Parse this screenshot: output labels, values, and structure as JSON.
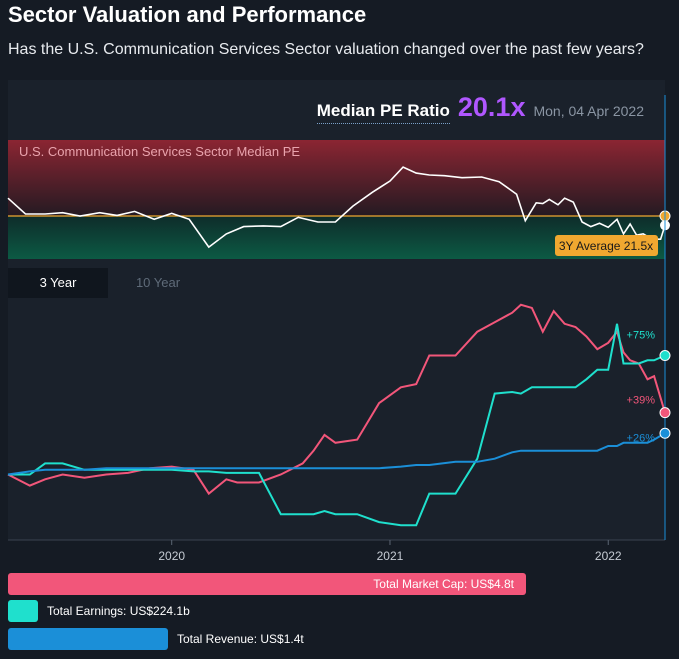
{
  "header": {
    "title": "Sector Valuation and Performance",
    "subtitle": "Has the U.S. Communication Services Sector valuation changed over the past few years?"
  },
  "pe": {
    "label": "Median PE Ratio",
    "value": "20.1x",
    "date": "Mon, 04 Apr 2022",
    "band_label": "U.S. Communication Services Sector Median PE",
    "average_label": "3Y Average 21.5x"
  },
  "tabs": [
    {
      "label": "3 Year",
      "active": true
    },
    {
      "label": "10 Year",
      "active": false
    }
  ],
  "colors": {
    "market_cap": "#f2567a",
    "earnings": "#1fe0cd",
    "revenue": "#1b8fd8",
    "pe_value": "#b057ff",
    "average": "#f0a830"
  },
  "chart_data": [
    {
      "type": "line",
      "title": "U.S. Communication Services Sector Median PE",
      "x": [
        2019.25,
        2019.33,
        2019.42,
        2019.5,
        2019.58,
        2019.67,
        2019.75,
        2019.83,
        2019.92,
        2020.0,
        2020.08,
        2020.17,
        2020.25,
        2020.33,
        2020.42,
        2020.5,
        2020.58,
        2020.67,
        2020.75,
        2020.83,
        2020.92,
        2021.0,
        2021.06,
        2021.12,
        2021.18,
        2021.25,
        2021.33,
        2021.42,
        2021.5,
        2021.58,
        2021.62,
        2021.67,
        2021.7,
        2021.73,
        2021.77,
        2021.8,
        2021.84,
        2021.88,
        2021.92,
        2021.96,
        2022.0,
        2022.04,
        2022.07,
        2022.1,
        2022.13,
        2022.16,
        2022.2,
        2022.24,
        2022.26
      ],
      "y": [
        24.2,
        21.8,
        21.8,
        22.0,
        21.5,
        22.0,
        21.6,
        22.2,
        21.0,
        21.9,
        21.0,
        16.8,
        18.8,
        19.9,
        20.0,
        19.9,
        21.3,
        20.6,
        20.6,
        23.0,
        25.1,
        26.8,
        28.9,
        28.0,
        27.7,
        27.6,
        27.3,
        27.4,
        26.7,
        24.8,
        20.8,
        23.5,
        23.4,
        24.0,
        23.2,
        24.2,
        23.6,
        20.6,
        19.9,
        20.4,
        19.8,
        21.0,
        18.8,
        20.3,
        18.6,
        18.8,
        18.0,
        18.0,
        20.1
      ],
      "average": 21.5,
      "ylim": [
        15,
        33
      ]
    },
    {
      "type": "line",
      "x": [
        2019.25,
        2019.35,
        2019.42,
        2019.5,
        2019.6,
        2019.7,
        2019.8,
        2019.9,
        2020.0,
        2020.1,
        2020.17,
        2020.25,
        2020.3,
        2020.4,
        2020.5,
        2020.6,
        2020.65,
        2020.7,
        2020.75,
        2020.85,
        2020.95,
        2021.05,
        2021.12,
        2021.18,
        2021.3,
        2021.4,
        2021.48,
        2021.56,
        2021.6,
        2021.65,
        2021.7,
        2021.75,
        2021.8,
        2021.85,
        2021.9,
        2021.95,
        2022.0,
        2022.04,
        2022.07,
        2022.1,
        2022.14,
        2022.18,
        2022.21,
        2022.26
      ],
      "series": [
        {
          "name": "Total Market Cap",
          "label": "+39%",
          "y": [
            0,
            -7,
            -3,
            0,
            -2,
            0,
            1,
            4,
            5,
            3,
            -12,
            -3,
            -5,
            -5,
            0,
            7,
            15,
            25,
            20,
            22,
            45,
            55,
            57,
            75,
            75,
            90,
            96,
            102,
            107,
            105,
            90,
            103,
            95,
            93,
            87,
            79,
            83,
            90,
            77,
            72,
            70,
            60,
            62,
            39
          ]
        },
        {
          "name": "Total Earnings",
          "label": "+75%",
          "y": [
            0,
            0,
            7,
            7,
            3,
            3,
            3,
            3,
            3,
            2,
            2,
            1,
            1,
            1,
            -25,
            -25,
            -25,
            -23,
            -25,
            -25,
            -30,
            -32,
            -32,
            -12,
            -12,
            10,
            51,
            52,
            51,
            55,
            55,
            55,
            55,
            55,
            60,
            66,
            66,
            95,
            70,
            70,
            70,
            72,
            72,
            75
          ]
        },
        {
          "name": "Total Revenue",
          "label": "+26%",
          "y": [
            0,
            2,
            3,
            3,
            3,
            4,
            4,
            4,
            4,
            4,
            4,
            4,
            4,
            4,
            4,
            4,
            4,
            4,
            4,
            4,
            4,
            5,
            6,
            6,
            8,
            8,
            10,
            14,
            15,
            15,
            15,
            15,
            15,
            15,
            15,
            15,
            18,
            18,
            20,
            20,
            20,
            20,
            22,
            26
          ]
        }
      ],
      "xticks": [
        "2020",
        "2021",
        "2022"
      ],
      "ylim": [
        -40,
        110
      ]
    }
  ],
  "legend": [
    {
      "text": "Total Market Cap: US$4.8t",
      "value": 4800
    },
    {
      "text": "Total Earnings: US$224.1b",
      "value": 224.1
    },
    {
      "text": "Total Revenue: US$1.4t",
      "value": 1400
    }
  ]
}
